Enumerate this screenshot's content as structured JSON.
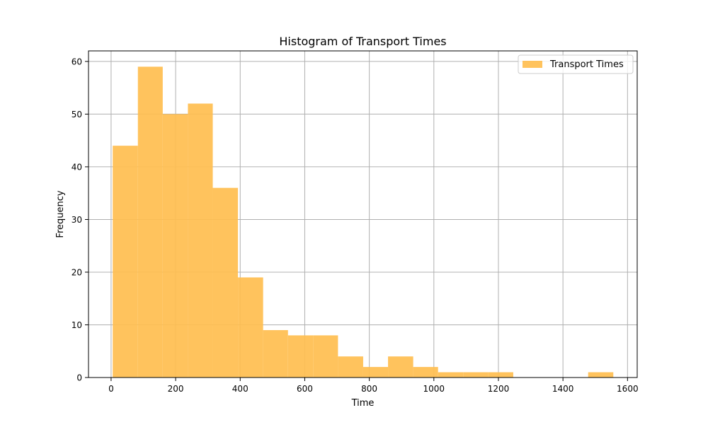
{
  "chart_data": {
    "type": "bar",
    "title": "Histogram of Transport Times",
    "xlabel": "Time",
    "ylabel": "Frequency",
    "xlim": [
      -70,
      1630
    ],
    "ylim": [
      0,
      62
    ],
    "xticks": [
      0,
      200,
      400,
      600,
      800,
      1000,
      1200,
      1400,
      1600
    ],
    "yticks": [
      0,
      10,
      20,
      30,
      40,
      50,
      60
    ],
    "grid": true,
    "legend_position": "top-right",
    "series": [
      {
        "name": "Transport Times",
        "color": "#ffbe4f",
        "bin_edges": [
          5,
          83,
          160,
          238,
          315,
          393,
          471,
          548,
          626,
          703,
          781,
          858,
          936,
          1013,
          1091,
          1168,
          1246,
          1323,
          1401,
          1478,
          1556
        ],
        "counts": [
          44,
          59,
          50,
          52,
          36,
          19,
          9,
          8,
          8,
          4,
          2,
          4,
          2,
          1,
          1,
          1,
          0,
          0,
          0,
          1
        ]
      }
    ]
  }
}
